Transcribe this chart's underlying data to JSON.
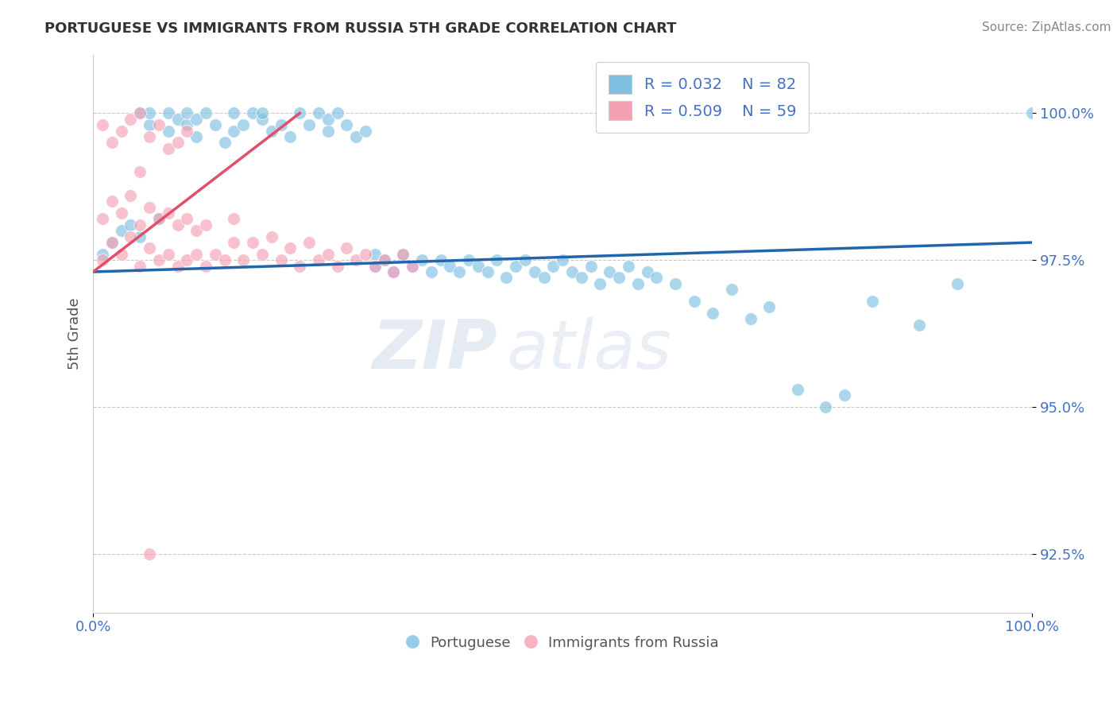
{
  "title": "PORTUGUESE VS IMMIGRANTS FROM RUSSIA 5TH GRADE CORRELATION CHART",
  "source": "Source: ZipAtlas.com",
  "ylabel": "5th Grade",
  "xlim": [
    0,
    100
  ],
  "ylim": [
    91.5,
    101.0
  ],
  "yticks": [
    92.5,
    95.0,
    97.5,
    100.0
  ],
  "xticklabels": [
    "0.0%",
    "100.0%"
  ],
  "yticklabels": [
    "92.5%",
    "95.0%",
    "97.5%",
    "100.0%"
  ],
  "blue_color": "#7fbfdf",
  "pink_color": "#f4a0b5",
  "blue_line_color": "#2166ac",
  "pink_line_color": "#e0506a",
  "legend_R1": "R = 0.032",
  "legend_N1": "N = 82",
  "legend_R2": "R = 0.509",
  "legend_N2": "N = 59",
  "watermark_zip": "ZIP",
  "watermark_atlas": "atlas",
  "blue_scatter_x": [
    1,
    2,
    3,
    4,
    5,
    5,
    6,
    6,
    7,
    8,
    8,
    9,
    10,
    10,
    11,
    11,
    12,
    13,
    14,
    15,
    15,
    16,
    17,
    18,
    18,
    19,
    20,
    21,
    22,
    23,
    24,
    25,
    25,
    26,
    27,
    28,
    29,
    30,
    30,
    31,
    32,
    33,
    34,
    35,
    36,
    37,
    38,
    39,
    40,
    41,
    42,
    43,
    44,
    45,
    46,
    47,
    48,
    49,
    50,
    51,
    52,
    53,
    54,
    55,
    56,
    57,
    58,
    59,
    60,
    62,
    64,
    66,
    68,
    70,
    72,
    75,
    78,
    80,
    83,
    88,
    92,
    100
  ],
  "blue_scatter_y": [
    97.6,
    97.8,
    98.0,
    98.1,
    97.9,
    100.0,
    99.8,
    100.0,
    98.2,
    99.7,
    100.0,
    99.9,
    99.8,
    100.0,
    99.6,
    99.9,
    100.0,
    99.8,
    99.5,
    99.7,
    100.0,
    99.8,
    100.0,
    99.9,
    100.0,
    99.7,
    99.8,
    99.6,
    100.0,
    99.8,
    100.0,
    99.7,
    99.9,
    100.0,
    99.8,
    99.6,
    99.7,
    97.4,
    97.6,
    97.5,
    97.3,
    97.6,
    97.4,
    97.5,
    97.3,
    97.5,
    97.4,
    97.3,
    97.5,
    97.4,
    97.3,
    97.5,
    97.2,
    97.4,
    97.5,
    97.3,
    97.2,
    97.4,
    97.5,
    97.3,
    97.2,
    97.4,
    97.1,
    97.3,
    97.2,
    97.4,
    97.1,
    97.3,
    97.2,
    97.1,
    96.8,
    96.6,
    97.0,
    96.5,
    96.7,
    95.3,
    95.0,
    95.2,
    96.8,
    96.4,
    97.1,
    100.0
  ],
  "pink_scatter_x": [
    1,
    1,
    1,
    2,
    2,
    2,
    3,
    3,
    3,
    4,
    4,
    4,
    5,
    5,
    5,
    5,
    6,
    6,
    6,
    7,
    7,
    7,
    8,
    8,
    8,
    9,
    9,
    9,
    10,
    10,
    10,
    11,
    11,
    12,
    12,
    13,
    14,
    15,
    15,
    16,
    17,
    18,
    19,
    20,
    21,
    22,
    23,
    24,
    25,
    26,
    27,
    28,
    29,
    30,
    31,
    32,
    33,
    34,
    6
  ],
  "pink_scatter_y": [
    97.5,
    98.2,
    99.8,
    97.8,
    98.5,
    99.5,
    97.6,
    98.3,
    99.7,
    97.9,
    98.6,
    99.9,
    97.4,
    98.1,
    99.0,
    100.0,
    97.7,
    98.4,
    99.6,
    97.5,
    98.2,
    99.8,
    97.6,
    98.3,
    99.4,
    97.4,
    98.1,
    99.5,
    97.5,
    98.2,
    99.7,
    97.6,
    98.0,
    97.4,
    98.1,
    97.6,
    97.5,
    97.8,
    98.2,
    97.5,
    97.8,
    97.6,
    97.9,
    97.5,
    97.7,
    97.4,
    97.8,
    97.5,
    97.6,
    97.4,
    97.7,
    97.5,
    97.6,
    97.4,
    97.5,
    97.3,
    97.6,
    97.4,
    92.5
  ],
  "blue_trend_x": [
    0,
    100
  ],
  "blue_trend_y": [
    97.3,
    97.8
  ],
  "pink_trend_x": [
    0,
    22
  ],
  "pink_trend_y": [
    97.3,
    100.0
  ]
}
